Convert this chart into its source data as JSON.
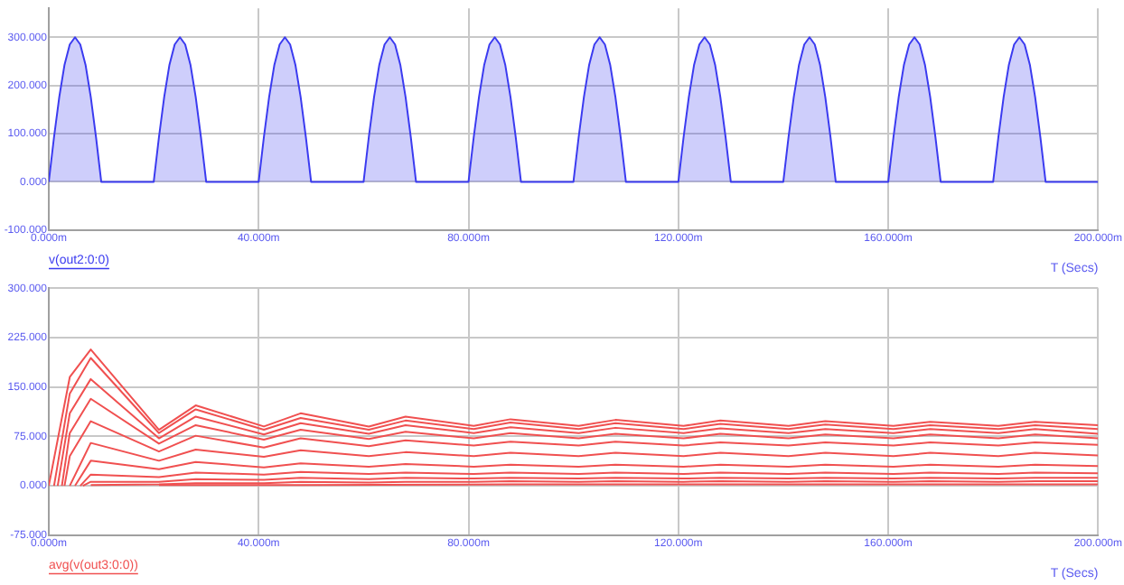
{
  "chart_data": [
    {
      "type": "area",
      "xlabel": "T (Secs)",
      "xlim": [
        0,
        200
      ],
      "xticks": [
        {
          "value": 0,
          "label": "0.000m"
        },
        {
          "value": 40,
          "label": "40.000m"
        },
        {
          "value": 80,
          "label": "80.000m"
        },
        {
          "value": 120,
          "label": "120.000m"
        },
        {
          "value": 160,
          "label": "160.000m"
        },
        {
          "value": 200,
          "label": "200.000m"
        }
      ],
      "ylim": [
        -100,
        360
      ],
      "yticks": [
        {
          "value": -100,
          "label": "-100.000"
        },
        {
          "value": 0,
          "label": "0.000"
        },
        {
          "value": 100,
          "label": "100.000"
        },
        {
          "value": 200,
          "label": "200.000"
        },
        {
          "value": 300,
          "label": "300.000"
        }
      ],
      "grid": true,
      "legend": "bottom left",
      "marker": "none",
      "line_style": "solid",
      "series": [
        {
          "name": "v(out2:0:0)",
          "color": "#3b3bf0",
          "x": [
            0,
            1,
            2,
            3,
            4,
            5,
            6,
            7,
            8,
            9,
            10,
            20,
            21,
            22,
            23,
            24,
            25,
            26,
            27,
            28,
            29,
            30,
            40,
            41,
            42,
            43,
            44,
            45,
            46,
            47,
            48,
            49,
            50,
            60,
            61,
            62,
            63,
            64,
            65,
            66,
            67,
            68,
            69,
            70,
            80,
            81,
            82,
            83,
            84,
            85,
            86,
            87,
            88,
            89,
            90,
            100,
            101,
            102,
            103,
            104,
            105,
            106,
            107,
            108,
            109,
            110,
            120,
            121,
            122,
            123,
            124,
            125,
            126,
            127,
            128,
            129,
            130,
            140,
            141,
            142,
            143,
            144,
            145,
            146,
            147,
            148,
            149,
            150,
            160,
            161,
            162,
            163,
            164,
            165,
            166,
            167,
            168,
            169,
            170,
            180,
            181,
            182,
            183,
            184,
            185,
            186,
            187,
            188,
            189,
            190,
            200
          ],
          "values": [
            0,
            93,
            176,
            243,
            285,
            300,
            285,
            243,
            176,
            93,
            0,
            0,
            93,
            176,
            243,
            285,
            300,
            285,
            243,
            176,
            93,
            0,
            0,
            93,
            176,
            243,
            285,
            300,
            285,
            243,
            176,
            93,
            0,
            0,
            93,
            176,
            243,
            285,
            300,
            285,
            243,
            176,
            93,
            0,
            0,
            93,
            176,
            243,
            285,
            300,
            285,
            243,
            176,
            93,
            0,
            0,
            93,
            176,
            243,
            285,
            300,
            285,
            243,
            176,
            93,
            0,
            0,
            93,
            176,
            243,
            285,
            300,
            285,
            243,
            176,
            93,
            0,
            0,
            93,
            176,
            243,
            285,
            300,
            285,
            243,
            176,
            93,
            0,
            0,
            93,
            176,
            243,
            285,
            300,
            285,
            243,
            176,
            93,
            0,
            0,
            93,
            176,
            243,
            285,
            300,
            285,
            243,
            176,
            93,
            0,
            0
          ]
        }
      ]
    },
    {
      "type": "line",
      "xlabel": "T (Secs)",
      "xlim": [
        0,
        200
      ],
      "xticks": [
        {
          "value": 0,
          "label": "0.000m"
        },
        {
          "value": 40,
          "label": "40.000m"
        },
        {
          "value": 80,
          "label": "80.000m"
        },
        {
          "value": 120,
          "label": "120.000m"
        },
        {
          "value": 160,
          "label": "160.000m"
        },
        {
          "value": 200,
          "label": "200.000m"
        }
      ],
      "ylim": [
        -75,
        300
      ],
      "yticks": [
        {
          "value": -75,
          "label": "-75.000"
        },
        {
          "value": 0,
          "label": "0.000"
        },
        {
          "value": 75,
          "label": "75.000"
        },
        {
          "value": 150,
          "label": "150.000"
        },
        {
          "value": 225,
          "label": "225.000"
        },
        {
          "value": 300,
          "label": "300.000"
        }
      ],
      "grid": true,
      "legend": "bottom left",
      "marker": "none",
      "line_style": "solid",
      "series": [
        {
          "name": "avg(v(out3:0:0))",
          "color": "#f05050",
          "x": [
            0,
            0.3,
            4,
            8,
            21,
            28,
            41,
            48,
            61,
            68,
            81,
            88,
            101,
            108,
            121,
            128,
            141,
            148,
            161,
            168,
            181,
            188,
            200
          ],
          "values": [
            0,
            0,
            165,
            207,
            85,
            122,
            90,
            110,
            90,
            105,
            91,
            101,
            91,
            100,
            91,
            99,
            91,
            98,
            91,
            97,
            91,
            97,
            92
          ]
        },
        {
          "color": "#f05050",
          "x": [
            1,
            4,
            8,
            21,
            28,
            41,
            48,
            61,
            68,
            81,
            88,
            101,
            108,
            121,
            128,
            141,
            148,
            161,
            168,
            181,
            188,
            200
          ],
          "values": [
            0,
            140,
            194,
            80,
            116,
            85,
            103,
            85,
            99,
            86,
            96,
            86,
            95,
            86,
            94,
            86,
            93,
            86,
            92,
            86,
            92,
            86
          ]
        },
        {
          "color": "#f05050",
          "x": [
            1.7,
            4,
            8,
            21,
            28,
            41,
            48,
            61,
            68,
            81,
            88,
            101,
            108,
            121,
            128,
            141,
            148,
            161,
            168,
            181,
            188,
            200
          ],
          "values": [
            0,
            110,
            162,
            72,
            105,
            78,
            95,
            79,
            92,
            80,
            89,
            80,
            88,
            80,
            87,
            80,
            86,
            80,
            86,
            80,
            86,
            79
          ]
        },
        {
          "color": "#f05050",
          "x": [
            2.5,
            4,
            8,
            21,
            28,
            41,
            48,
            61,
            68,
            81,
            88,
            101,
            108,
            121,
            128,
            141,
            148,
            161,
            168,
            181,
            188,
            200
          ],
          "values": [
            0,
            80,
            132,
            64,
            92,
            70,
            85,
            71,
            82,
            72,
            80,
            72,
            79,
            72,
            79,
            72,
            78,
            72,
            78,
            72,
            78,
            72
          ]
        },
        {
          "color": "#f05050",
          "x": [
            3,
            4,
            8,
            21,
            28,
            41,
            48,
            61,
            68,
            81,
            88,
            101,
            108,
            121,
            128,
            141,
            148,
            161,
            168,
            181,
            188,
            200
          ],
          "values": [
            0,
            45,
            98,
            52,
            76,
            58,
            72,
            60,
            69,
            61,
            67,
            61,
            67,
            61,
            66,
            61,
            66,
            61,
            66,
            61,
            66,
            62
          ]
        },
        {
          "color": "#f05050",
          "x": [
            4,
            8,
            21,
            28,
            41,
            48,
            61,
            68,
            81,
            88,
            101,
            108,
            121,
            128,
            141,
            148,
            161,
            168,
            181,
            188,
            200
          ],
          "values": [
            0,
            65,
            38,
            55,
            44,
            54,
            45,
            51,
            45,
            50,
            45,
            50,
            45,
            50,
            45,
            50,
            45,
            50,
            45,
            50,
            46
          ]
        },
        {
          "color": "#f05050",
          "x": [
            5,
            8,
            21,
            28,
            41,
            48,
            61,
            68,
            81,
            88,
            101,
            108,
            121,
            128,
            141,
            148,
            161,
            168,
            181,
            188,
            200
          ],
          "values": [
            0,
            38,
            25,
            36,
            28,
            34,
            29,
            33,
            29,
            32,
            29,
            32,
            29,
            32,
            29,
            32,
            29,
            32,
            29,
            32,
            30
          ]
        },
        {
          "color": "#f05050",
          "x": [
            6,
            8,
            21,
            28,
            41,
            48,
            61,
            68,
            81,
            88,
            101,
            108,
            121,
            128,
            141,
            148,
            161,
            168,
            181,
            188,
            200
          ],
          "values": [
            0,
            17,
            13,
            20,
            17,
            21,
            18,
            20,
            18,
            20,
            18,
            20,
            18,
            20,
            18,
            20,
            18,
            20,
            18,
            20,
            19
          ]
        },
        {
          "color": "#f05050",
          "x": [
            6.5,
            8,
            21,
            28,
            41,
            48,
            61,
            68,
            81,
            88,
            101,
            108,
            121,
            128,
            141,
            148,
            161,
            168,
            181,
            188,
            200
          ],
          "values": [
            0,
            6,
            6,
            10,
            9,
            12,
            10,
            12,
            11,
            12,
            11,
            12,
            11,
            12,
            11,
            12,
            11,
            12,
            11,
            12,
            12
          ]
        },
        {
          "color": "#f05050",
          "x": [
            8,
            21,
            28,
            41,
            48,
            61,
            68,
            81,
            88,
            101,
            108,
            121,
            128,
            141,
            148,
            161,
            168,
            181,
            188,
            200
          ],
          "values": [
            1,
            2,
            4,
            4,
            6,
            5,
            6,
            6,
            7,
            6,
            7,
            6,
            7,
            6,
            7,
            6,
            7,
            6,
            7,
            7
          ]
        },
        {
          "color": "#f05050",
          "x": [
            21,
            48,
            88,
            128,
            200
          ],
          "values": [
            1,
            1,
            2,
            2,
            2
          ]
        }
      ]
    }
  ]
}
